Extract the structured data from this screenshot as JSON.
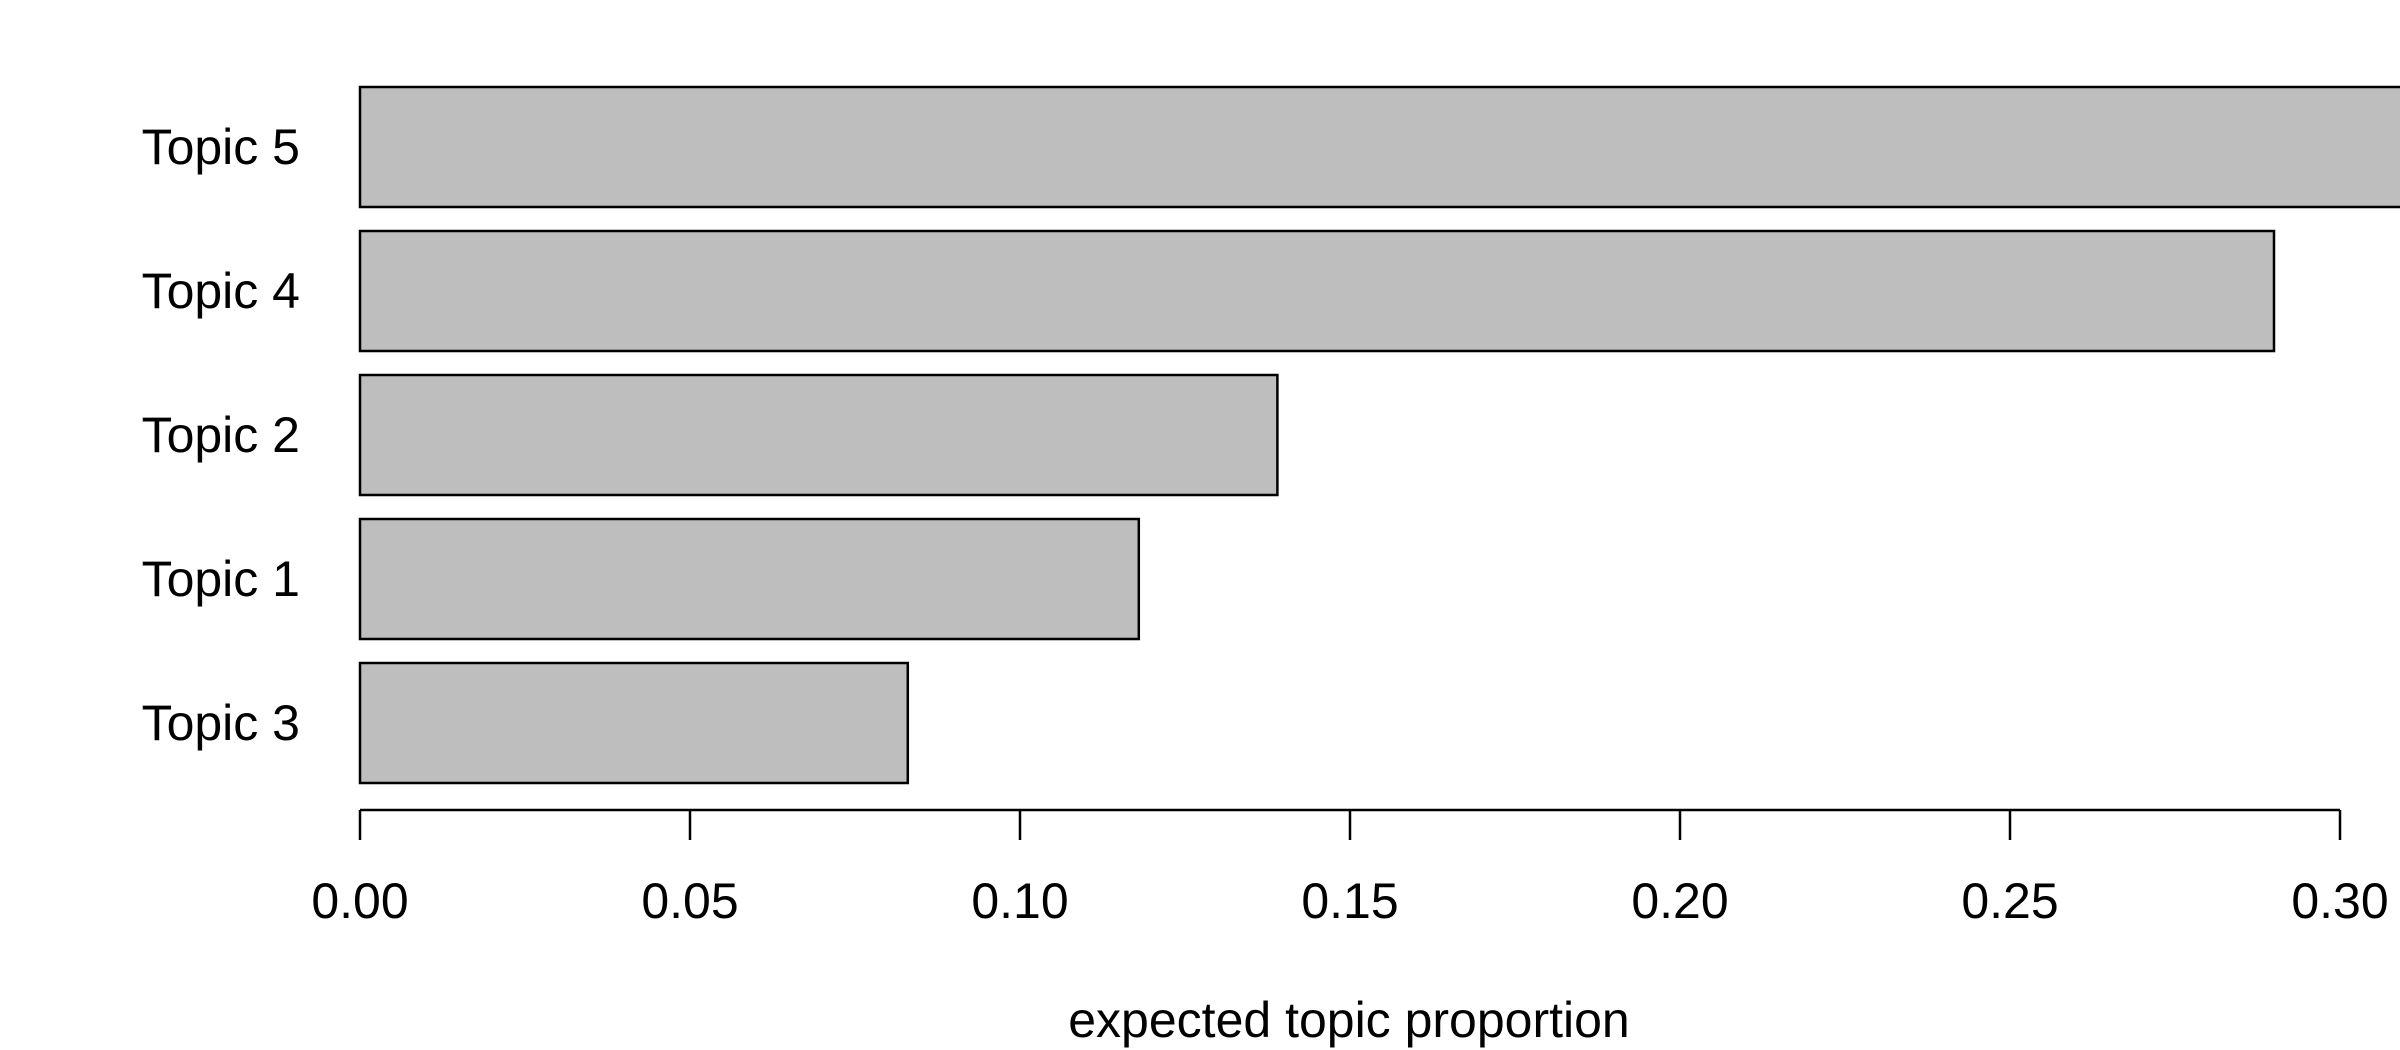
{
  "chart_data": {
    "type": "bar",
    "orientation": "horizontal",
    "categories": [
      "Topic 5",
      "Topic 4",
      "Topic 2",
      "Topic 1",
      "Topic 3"
    ],
    "values": [
      0.325,
      0.29,
      0.139,
      0.118,
      0.083
    ],
    "title": "",
    "xlabel": "expected topic proportion",
    "ylabel": "",
    "xlim": [
      0,
      0.3
    ],
    "xticks": [
      0.0,
      0.05,
      0.1,
      0.15,
      0.2,
      0.25,
      0.3
    ],
    "xtick_labels": [
      "0.00",
      "0.05",
      "0.10",
      "0.15",
      "0.20",
      "0.25",
      "0.30"
    ],
    "grid": false,
    "legend": "none",
    "bar_color": "#bebebe",
    "bar_edge_color": "#000000"
  }
}
